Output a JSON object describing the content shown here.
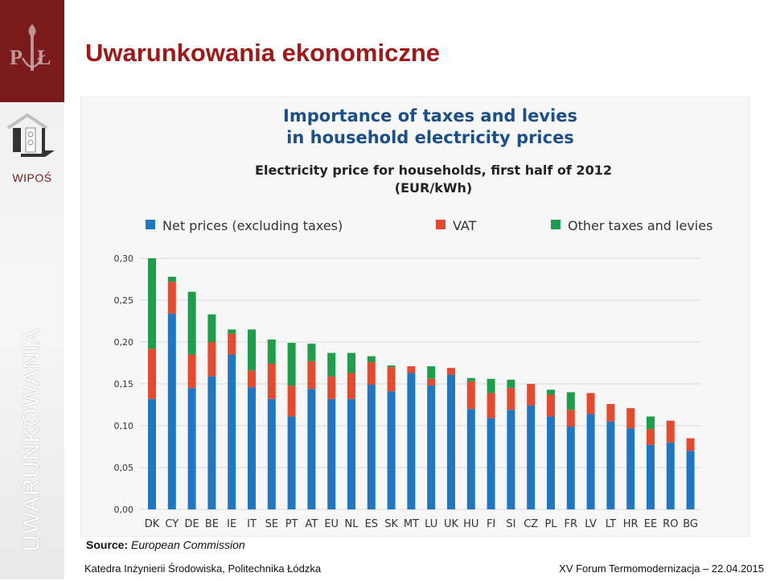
{
  "slide": {
    "title": "Uwarunkowania ekonomiczne",
    "sidebar_label": "WIPOŚ",
    "vertical_label": "UWARUNKOWANIA",
    "source_label": "Source:",
    "source_value": "European Commission",
    "footer_left": "Katedra Inżynierii Środowiska, Politechnika Łódzka",
    "footer_right": "XV Forum Termomodernizacja – 22.04.2015",
    "colors": {
      "accent": "#a01818",
      "logo_bg": "#7b1a1a"
    }
  },
  "chart_data": {
    "type": "bar",
    "stacked": true,
    "title_lines": [
      "Importance of taxes and levies",
      "in household electricity prices"
    ],
    "subtitle_lines": [
      "Electricity price for households, first half of 2012",
      "(EUR/kWh)"
    ],
    "categories": [
      "DK",
      "CY",
      "DE",
      "BE",
      "IE",
      "IT",
      "SE",
      "PT",
      "AT",
      "EU",
      "NL",
      "ES",
      "SK",
      "MT",
      "LU",
      "UK",
      "HU",
      "FI",
      "SI",
      "CZ",
      "PL",
      "FR",
      "LV",
      "LT",
      "HR",
      "EE",
      "RO",
      "BG"
    ],
    "series": [
      {
        "name": "Net prices (excluding taxes)",
        "color": "#1f77c4",
        "values": [
          0.132,
          0.234,
          0.145,
          0.159,
          0.185,
          0.146,
          0.132,
          0.111,
          0.144,
          0.132,
          0.132,
          0.149,
          0.141,
          0.163,
          0.148,
          0.161,
          0.12,
          0.109,
          0.119,
          0.124,
          0.111,
          0.099,
          0.114,
          0.105,
          0.097,
          0.077,
          0.08,
          0.07
        ]
      },
      {
        "name": "VAT",
        "color": "#e64a2e",
        "values": [
          0.06,
          0.038,
          0.04,
          0.041,
          0.025,
          0.02,
          0.042,
          0.037,
          0.033,
          0.027,
          0.031,
          0.027,
          0.029,
          0.008,
          0.008,
          0.008,
          0.033,
          0.03,
          0.026,
          0.026,
          0.026,
          0.02,
          0.025,
          0.021,
          0.024,
          0.019,
          0.026,
          0.015
        ]
      },
      {
        "name": "Other taxes and levies",
        "color": "#1e9e4a",
        "values": [
          0.108,
          0.006,
          0.075,
          0.033,
          0.005,
          0.049,
          0.029,
          0.051,
          0.021,
          0.028,
          0.024,
          0.007,
          0.002,
          0.0,
          0.015,
          0.0,
          0.004,
          0.017,
          0.01,
          0.0,
          0.006,
          0.021,
          0.0,
          0.0,
          0.0,
          0.015,
          0.0,
          0.0
        ]
      }
    ],
    "ylim": [
      0,
      0.3
    ],
    "yticks": [
      "0,00",
      "0,05",
      "0,10",
      "0,15",
      "0,20",
      "0,25",
      "0,30"
    ],
    "grid": true,
    "legend_position": "top"
  }
}
